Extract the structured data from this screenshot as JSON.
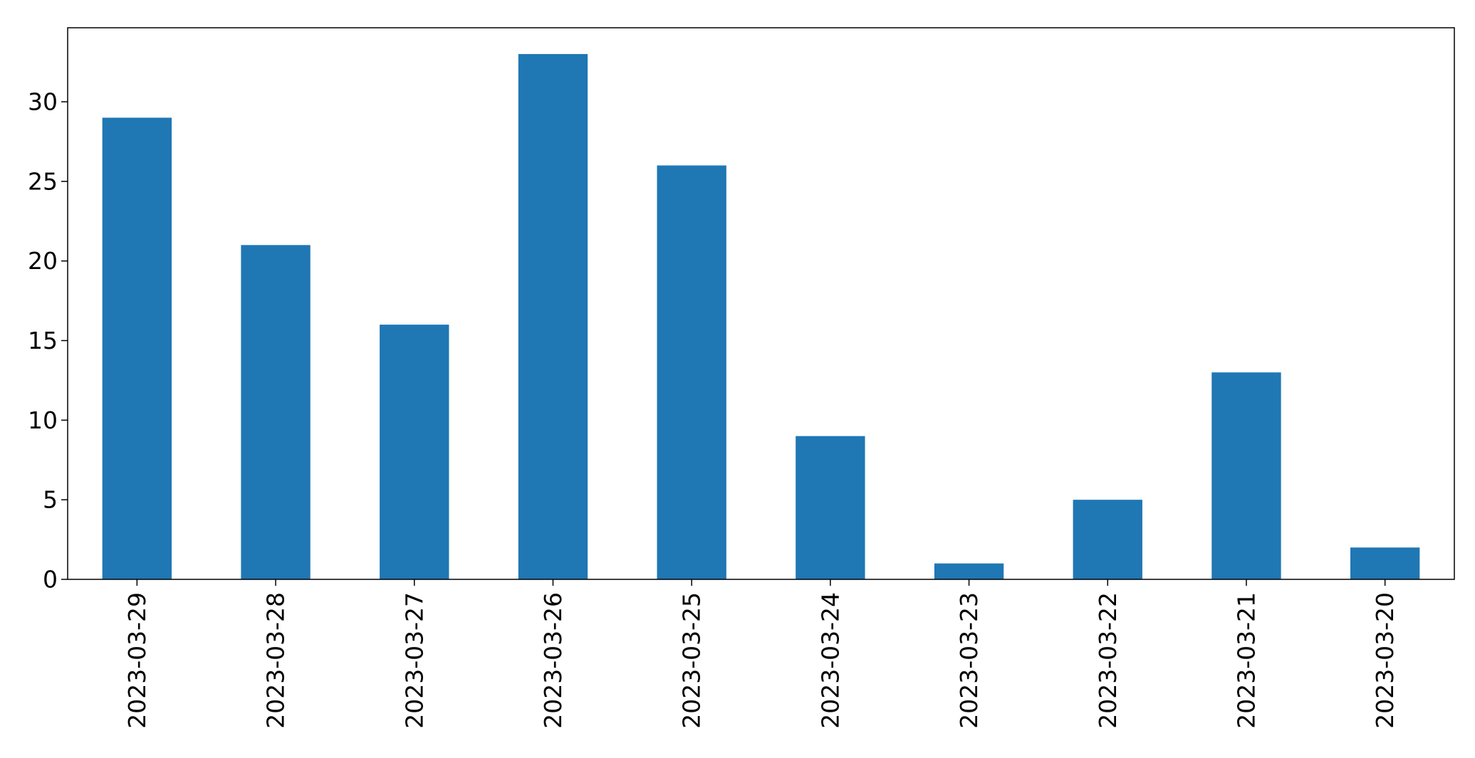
{
  "chart_data": {
    "type": "bar",
    "title": "",
    "xlabel": "",
    "ylabel": "",
    "categories": [
      "2023-03-29",
      "2023-03-28",
      "2023-03-27",
      "2023-03-26",
      "2023-03-25",
      "2023-03-24",
      "2023-03-23",
      "2023-03-22",
      "2023-03-21",
      "2023-03-20"
    ],
    "values": [
      29,
      21,
      16,
      33,
      26,
      9,
      1,
      5,
      13,
      2
    ],
    "ylim": [
      0,
      34.65
    ],
    "yticks": [
      0,
      5,
      10,
      15,
      20,
      25,
      30
    ],
    "grid": false,
    "legend": false,
    "bar_color": "#1f77b4"
  }
}
